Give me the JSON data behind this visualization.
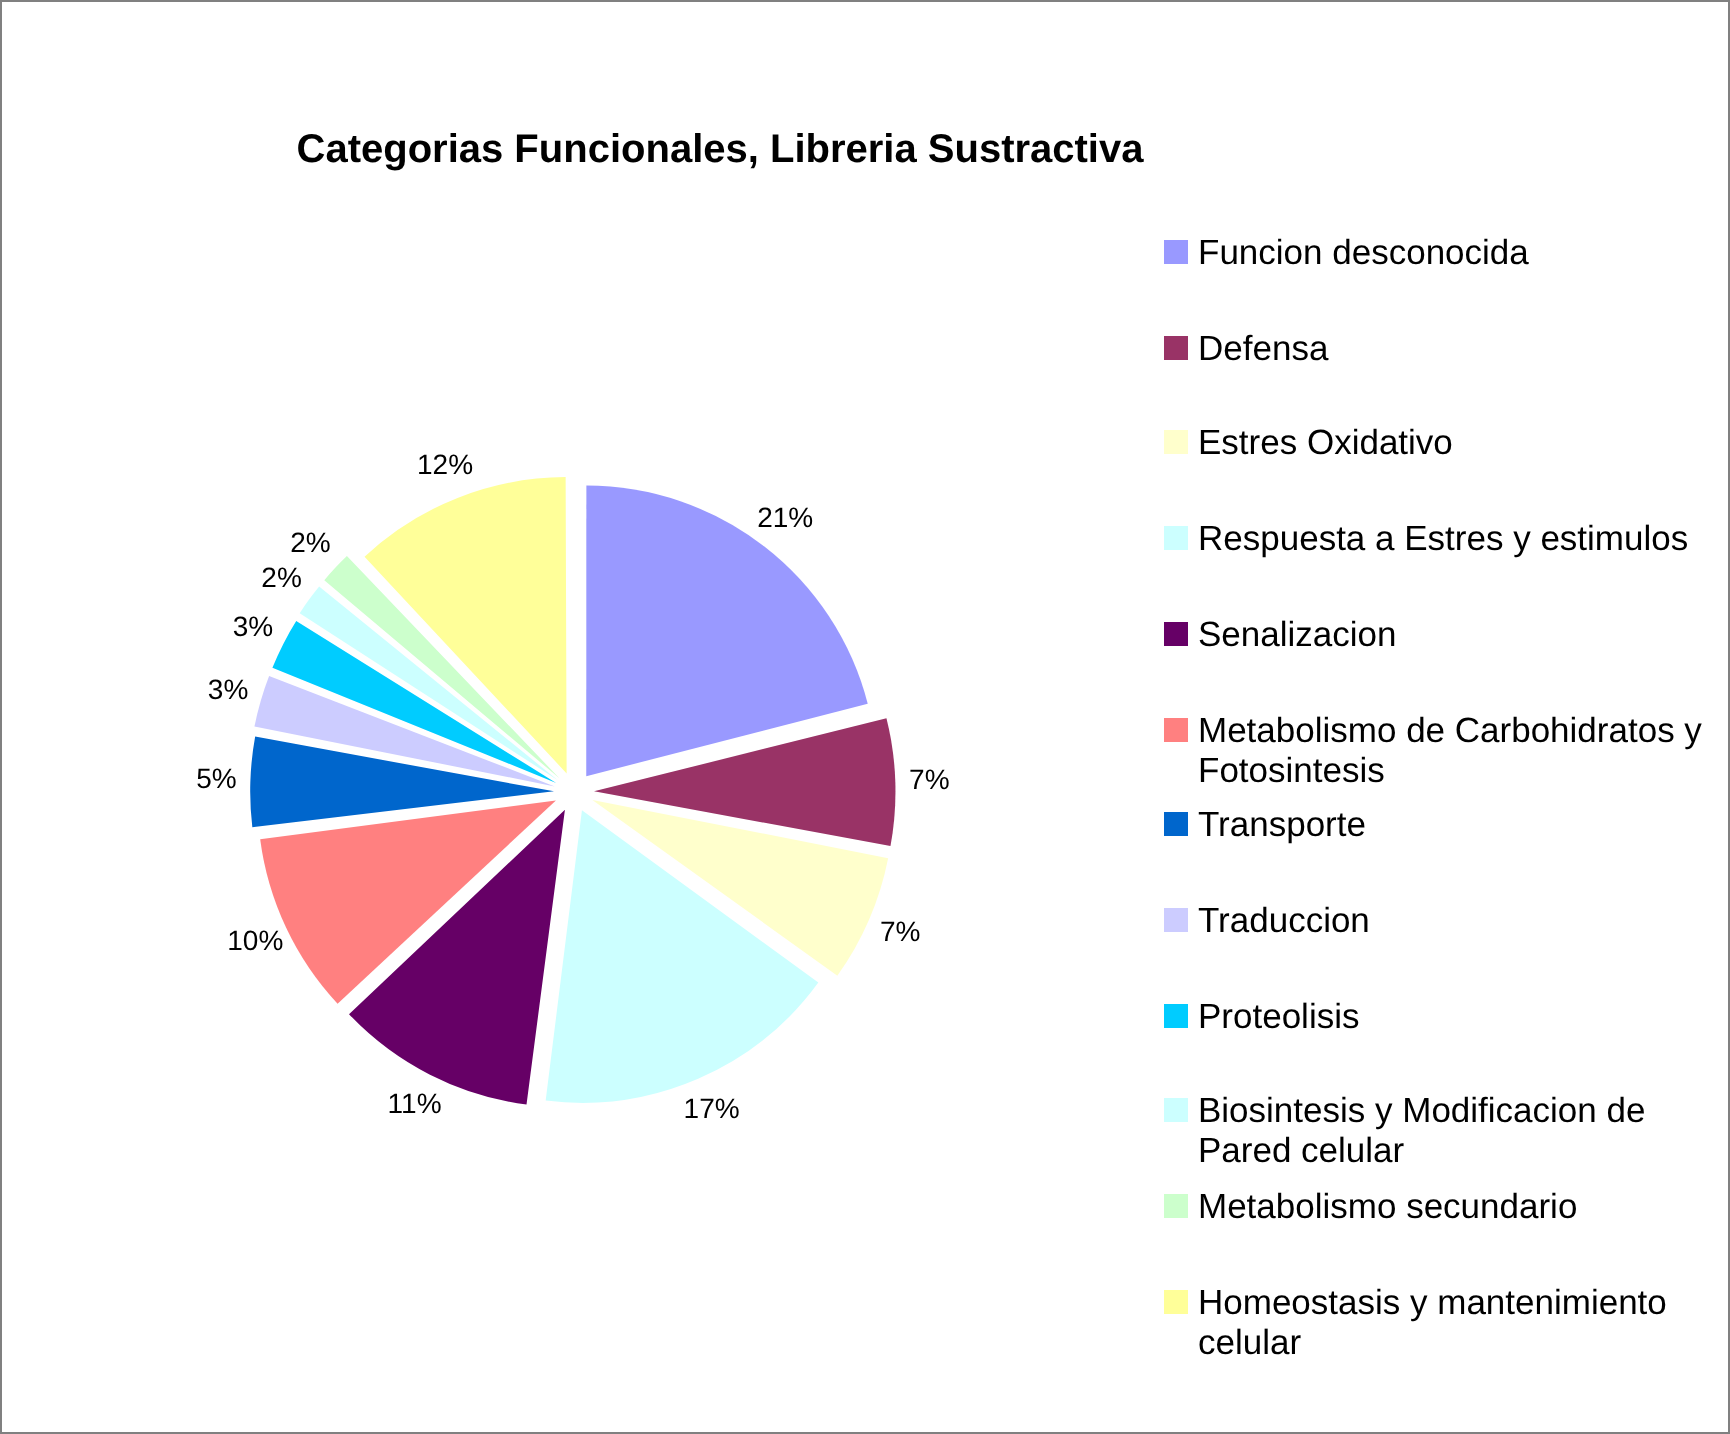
{
  "chart_data": {
    "type": "pie",
    "title": "Categorias Funcionales, Libreria Sustractiva",
    "categories": [
      "Funcion desconocida",
      "Defensa",
      "Estres Oxidativo",
      "Respuesta a Estres y estimulos",
      "Senalizacion",
      "Metabolismo de Carbohidratos y Fotosintesis",
      "Transporte",
      "Traduccion",
      "Proteolisis",
      "Biosintesis y Modificacion de Pared celular",
      "Metabolismo secundario",
      "Homeostasis y mantenimiento celular"
    ],
    "values": [
      21,
      7,
      7,
      17,
      11,
      10,
      5,
      3,
      3,
      2,
      2,
      12
    ],
    "colors": [
      "#9999ff",
      "#993366",
      "#ffffcc",
      "#ccffff",
      "#660066",
      "#ff8080",
      "#0066cc",
      "#ccccff",
      "#00ccff",
      "#ccffff",
      "#ccffcc",
      "#ffff99"
    ],
    "value_labels": [
      "21%",
      "7%",
      "7%",
      "17%",
      "11%",
      "10%",
      "5%",
      "3%",
      "3%",
      "2%",
      "2%",
      "12%"
    ],
    "legend": "right"
  }
}
